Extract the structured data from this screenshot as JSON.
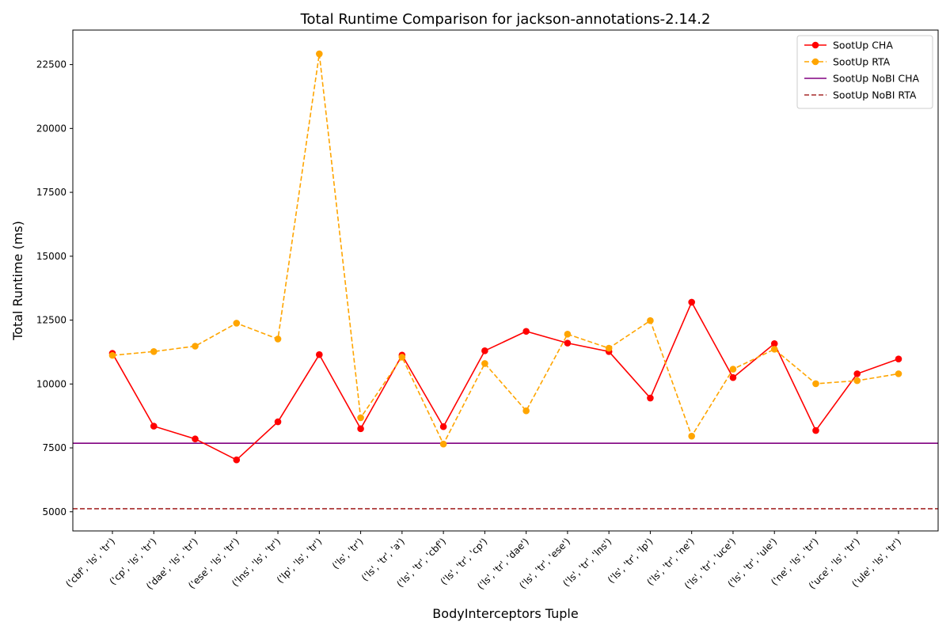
{
  "chart_data": {
    "type": "line",
    "title": "Total Runtime Comparison for jackson-annotations-2.14.2",
    "xlabel": "BodyInterceptors Tuple",
    "ylabel": "Total Runtime (ms)",
    "ylim": [
      4250,
      23850
    ],
    "yticks": [
      5000,
      7500,
      10000,
      12500,
      15000,
      17500,
      20000,
      22500
    ],
    "grid": false,
    "legend_position": "top-right",
    "categories": [
      "('cbf', 'ls', 'tr')",
      "('cp', 'ls', 'tr')",
      "('dae', 'ls', 'tr')",
      "('ese', 'ls', 'tr')",
      "('lns', 'ls', 'tr')",
      "('lp', 'ls', 'tr')",
      "('ls', 'tr')",
      "('ls', 'tr', 'a')",
      "('ls', 'tr', 'cbf')",
      "('ls', 'tr', 'cp')",
      "('ls', 'tr', 'dae')",
      "('ls', 'tr', 'ese')",
      "('ls', 'tr', 'lns')",
      "('ls', 'tr', 'lp')",
      "('ls', 'tr', 'ne')",
      "('ls', 'tr', 'uce')",
      "('ls', 'tr', 'ule')",
      "('ne', 'ls', 'tr')",
      "('uce', 'ls', 'tr')",
      "('ule', 'ls', 'tr')"
    ],
    "series": [
      {
        "name": "SootUp CHA",
        "color": "#ff0000",
        "style": "solid-marker",
        "values": [
          11200,
          8350,
          7850,
          7030,
          8520,
          11150,
          8250,
          11130,
          8330,
          11300,
          12060,
          11600,
          11270,
          9450,
          13200,
          10250,
          11580,
          8180,
          10400,
          10980
        ]
      },
      {
        "name": "SootUp RTA",
        "color": "#ffa500",
        "style": "dashed-marker",
        "values": [
          11120,
          11270,
          11480,
          12380,
          11760,
          22920,
          8680,
          11050,
          7650,
          10800,
          8950,
          11950,
          11400,
          12480,
          7960,
          10580,
          11360,
          10010,
          10130,
          10400
        ]
      },
      {
        "name": "SootUp NoBI CHA",
        "color": "#800080",
        "style": "solid-hline",
        "value": 7680
      },
      {
        "name": "SootUp NoBI RTA",
        "color": "#a52a2a",
        "style": "dashed-hline",
        "value": 5120
      }
    ]
  }
}
